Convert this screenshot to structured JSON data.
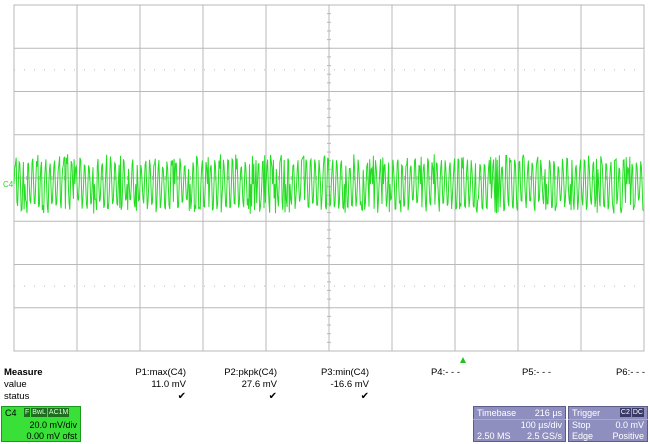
{
  "channel_label": "C4",
  "colors": {
    "trace": "#22dd22",
    "grid": "#b9b9b9",
    "timebase_box": "#8f8fbf",
    "channel_box": "#38e038"
  },
  "measure": {
    "title": "Measure",
    "row_labels": [
      "value",
      "status"
    ],
    "columns": [
      {
        "param": "P1:max(C4)",
        "value": "11.0 mV",
        "status": "✔"
      },
      {
        "param": "P2:pkpk(C4)",
        "value": "27.6 mV",
        "status": "✔"
      },
      {
        "param": "P3:min(C4)",
        "value": "-16.6 mV",
        "status": "✔"
      },
      {
        "param": "P4:- - -",
        "value": "",
        "status": ""
      },
      {
        "param": "P5:- - -",
        "value": "",
        "status": ""
      },
      {
        "param": "P6:- - -",
        "value": "",
        "status": ""
      }
    ]
  },
  "channel_box": {
    "name": "C4",
    "badges": [
      "F",
      "BwL",
      "AC1M"
    ],
    "volts_div": "20.0 mV/div",
    "offset": "0.00 mV ofst"
  },
  "timebase": {
    "title": "Timebase",
    "delay": "216 µs",
    "time_div": "100 µs/div",
    "samples": "2.50 MS",
    "rate": "2.5 GS/s"
  },
  "trigger": {
    "title": "Trigger",
    "badges": [
      "C2",
      "DC"
    ],
    "mode": "Stop",
    "level": "0.0 mV",
    "type": "Edge",
    "slope": "Positive"
  },
  "chart_data": {
    "type": "line",
    "title": "",
    "xlabel": "",
    "ylabel": "",
    "x_range_us": [
      -284,
      716
    ],
    "y_range_mV": [
      -80,
      80
    ],
    "grid": true,
    "series": [
      {
        "name": "C4",
        "values_mV": {
          "max": 11.0,
          "min": -16.6,
          "pkpk": 27.6
        },
        "approx_period_us": 6.9
      }
    ]
  }
}
